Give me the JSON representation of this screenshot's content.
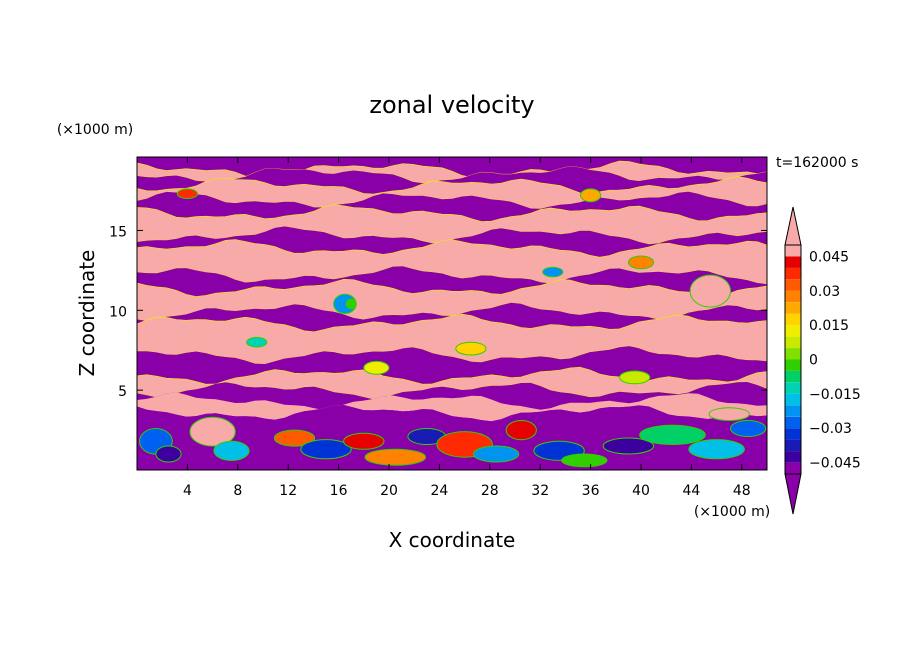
{
  "chart_data": {
    "type": "heatmap",
    "title": "zonal velocity",
    "time_label": "t=162000 s",
    "xlabel": "X coordinate",
    "ylabel": "Z coordinate",
    "x_unit": "(×1000 m)",
    "y_unit": "(×1000 m)",
    "xlim": [
      0,
      50
    ],
    "ylim": [
      0,
      19.6
    ],
    "x_ticks": [
      4,
      8,
      12,
      16,
      20,
      24,
      28,
      32,
      36,
      40,
      44,
      48
    ],
    "y_ticks": [
      5,
      10,
      15
    ],
    "colorbar": {
      "tick_labels": [
        "0.045",
        "0.03",
        "0.015",
        "0",
        "−0.015",
        "−0.03",
        "−0.045"
      ],
      "tick_values": [
        0.045,
        0.03,
        0.015,
        0,
        -0.015,
        -0.03,
        -0.045
      ],
      "levels": [
        -0.05,
        -0.045,
        -0.04,
        -0.035,
        -0.03,
        -0.025,
        -0.02,
        -0.015,
        -0.01,
        -0.005,
        0,
        0.005,
        0.01,
        0.015,
        0.02,
        0.025,
        0.03,
        0.035,
        0.04,
        0.045,
        0.05
      ],
      "colors": [
        "#8a00a8",
        "#3c00a0",
        "#1a1ab4",
        "#0033d6",
        "#0060f0",
        "#0094f0",
        "#00c0e8",
        "#00d2b4",
        "#00d066",
        "#30d000",
        "#80e000",
        "#c8ea00",
        "#f0ee00",
        "#ffd200",
        "#ffa800",
        "#ff8200",
        "#ff5a00",
        "#ff2a00",
        "#e60000",
        "#f8aaa8"
      ],
      "min_color": "#8a00a8",
      "max_color": "#f8aaa8"
    },
    "band_edges_z": [
      19.6,
      18.8,
      18.5,
      17.8,
      16.9,
      16.1,
      14.7,
      13.9,
      12.2,
      11.4,
      9.9,
      9.2,
      7.2,
      5.9,
      5.0,
      4.3,
      3.6,
      0
    ],
    "band_signs": [
      "-",
      "+",
      "-",
      "+",
      "-",
      "+",
      "-",
      "+",
      "-",
      "+",
      "-",
      "+",
      "-",
      "+",
      "-",
      "mixed",
      "mixed"
    ]
  }
}
